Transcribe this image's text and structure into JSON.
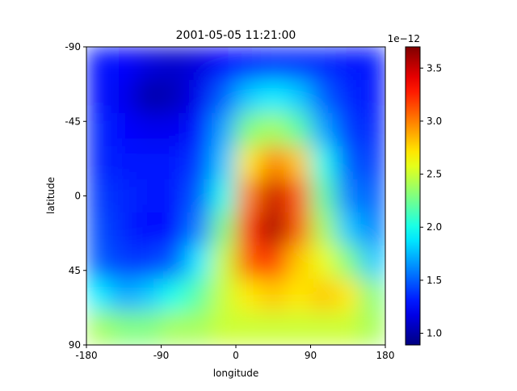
{
  "chart_data": {
    "type": "heatmap",
    "title": "2001-05-05 11:21:00",
    "x_label": "longitude",
    "y_label": "latitude",
    "xlim": [
      -180,
      180
    ],
    "ylim": [
      90,
      -90
    ],
    "xticks": [
      -180,
      -90,
      0,
      90,
      180
    ],
    "yticks": [
      -90,
      -45,
      0,
      45,
      90
    ],
    "colormap": "jet",
    "z": [
      [
        1.3,
        1.25,
        1.15,
        1.1,
        1.15,
        1.25,
        1.3,
        1.35,
        1.35,
        1.35,
        1.3,
        1.3
      ],
      [
        1.3,
        1.2,
        1.0,
        1.05,
        1.2,
        1.5,
        1.8,
        1.9,
        1.8,
        1.5,
        1.35,
        1.3
      ],
      [
        1.35,
        1.25,
        1.2,
        1.2,
        1.3,
        1.7,
        2.3,
        2.4,
        2.2,
        1.7,
        1.4,
        1.35
      ],
      [
        1.35,
        1.3,
        1.3,
        1.3,
        1.4,
        1.8,
        2.7,
        3.0,
        2.8,
        2.0,
        1.5,
        1.4
      ],
      [
        1.4,
        1.35,
        1.3,
        1.3,
        1.5,
        2.0,
        3.0,
        3.5,
        3.1,
        2.2,
        1.6,
        1.5
      ],
      [
        1.45,
        1.35,
        1.25,
        1.3,
        1.6,
        2.3,
        3.2,
        3.6,
        3.1,
        2.4,
        1.8,
        1.6
      ],
      [
        1.5,
        1.4,
        1.4,
        1.5,
        1.9,
        2.5,
        3.1,
        3.2,
        2.8,
        2.6,
        2.3,
        1.8
      ],
      [
        1.9,
        1.7,
        1.8,
        2.0,
        2.2,
        2.5,
        2.7,
        2.8,
        2.7,
        2.8,
        2.7,
        2.3
      ],
      [
        2.4,
        2.3,
        2.3,
        2.4,
        2.4,
        2.5,
        2.5,
        2.5,
        2.5,
        2.5,
        2.5,
        2.4
      ]
    ],
    "colorbar": {
      "lim": [
        0.89,
        3.7
      ],
      "offset_label": "1e−12",
      "ticks": [
        {
          "value": 1,
          "label": "1.0"
        },
        1.5,
        {
          "value": 2,
          "label": "2.0"
        },
        2.5,
        {
          "value": 3,
          "label": "3.0"
        },
        3.5
      ]
    }
  }
}
